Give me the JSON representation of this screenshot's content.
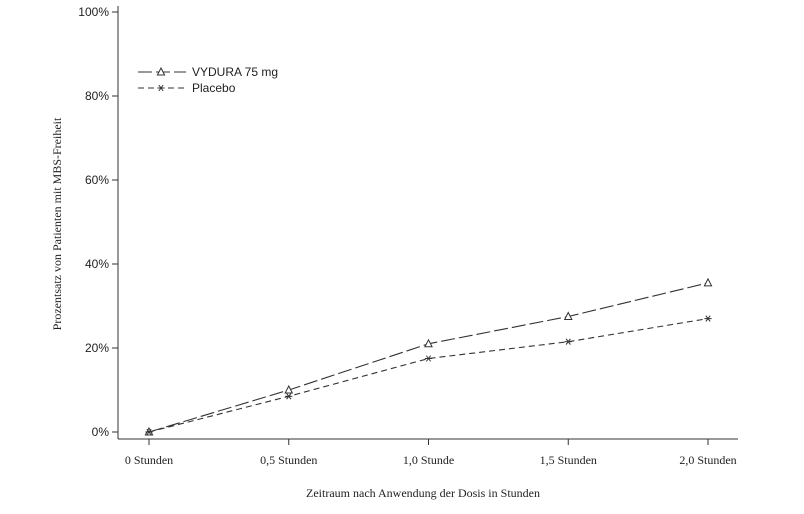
{
  "chart_data": {
    "type": "line",
    "title": "",
    "xlabel": "Zeitraum nach Anwendung der Dosis in Stunden",
    "ylabel": "Prozentsatz von Patienten mit MBS-Freiheit",
    "categories": [
      "0 Stunden",
      "0,5 Stunden",
      "1,0 Stunde",
      "1,5 Stunden",
      "2,0 Stunden"
    ],
    "x": [
      0,
      0.5,
      1.0,
      1.5,
      2.0
    ],
    "ylim": [
      0,
      100
    ],
    "yticks": [
      0,
      20,
      40,
      60,
      80,
      100
    ],
    "ytick_labels": [
      "0%",
      "20%",
      "40%",
      "60%",
      "80%",
      "100%"
    ],
    "grid": false,
    "legend_position": "top-left",
    "series": [
      {
        "name": "VYDURA 75 mg",
        "values": [
          0,
          10,
          21,
          27.5,
          35.5
        ],
        "marker": "triangle",
        "line_style": "long-dash",
        "color": "#333333"
      },
      {
        "name": "Placebo",
        "values": [
          0,
          8.5,
          17.5,
          21.5,
          27
        ],
        "marker": "asterisk",
        "line_style": "dash",
        "color": "#333333"
      }
    ]
  }
}
